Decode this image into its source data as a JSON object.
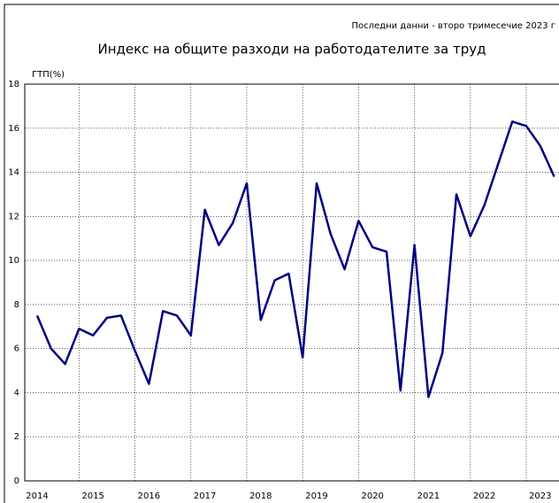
{
  "chart_data": {
    "type": "line",
    "note": "Последни данни - второ тримесечие 2023 г",
    "title": "Индекс на общите разходи на работодателите за труд",
    "y_label": "ГТП(%)",
    "categories": [
      "2014",
      null,
      null,
      null,
      "2015",
      null,
      null,
      null,
      "2016",
      null,
      null,
      null,
      "2017",
      null,
      null,
      null,
      "2018",
      null,
      null,
      null,
      "2019",
      null,
      null,
      null,
      "2020",
      null,
      null,
      null,
      "2021",
      null,
      null,
      null,
      "2022",
      null,
      null,
      null,
      "2023",
      null
    ],
    "series": [
      {
        "color": "#000080",
        "values": [
          7.5,
          6.0,
          5.3,
          6.9,
          6.6,
          7.4,
          7.5,
          5.9,
          4.4,
          7.7,
          7.5,
          6.6,
          12.3,
          10.7,
          11.7,
          13.5,
          7.3,
          9.1,
          9.4,
          5.6,
          13.5,
          11.2,
          9.6,
          11.8,
          10.6,
          10.4,
          4.1,
          10.7,
          3.8,
          5.8,
          13.0,
          11.1,
          12.5,
          14.4,
          16.3,
          16.1,
          15.2,
          13.8
        ]
      }
    ],
    "ylim": [
      0,
      18
    ],
    "yticks": [
      0,
      2,
      4,
      6,
      8,
      10,
      12,
      14,
      16,
      18
    ],
    "grid": true
  }
}
